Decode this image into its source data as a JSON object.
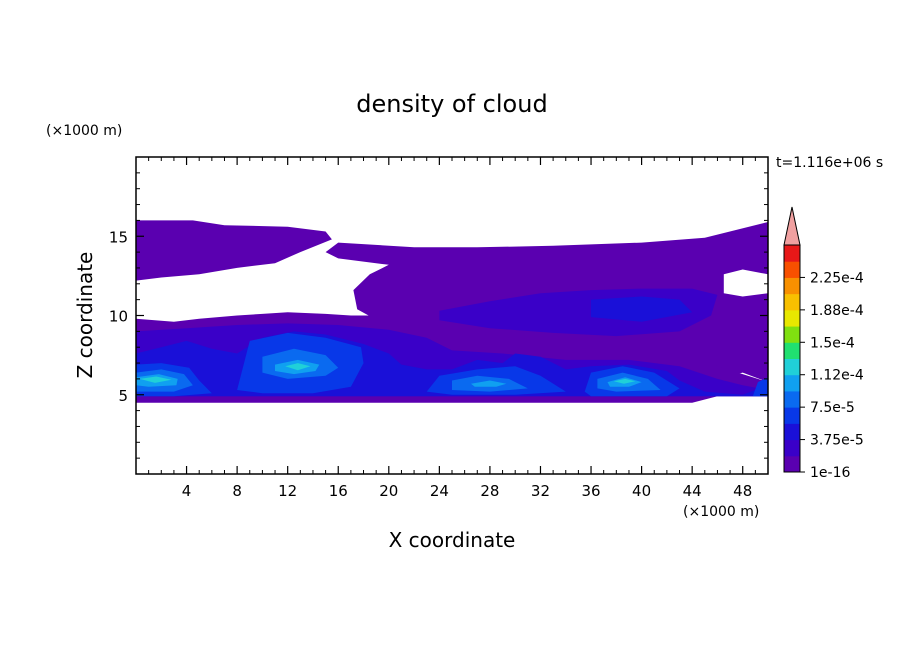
{
  "chart_data": {
    "type": "heatmap",
    "title": "density of cloud",
    "xlabel": "X coordinate",
    "ylabel": "Z coordinate",
    "x_unit": "(×1000 m)",
    "y_unit": "(×1000 m)",
    "time_label": "t=1.116e+06 s",
    "xlim": [
      0,
      50
    ],
    "ylim": [
      0,
      20
    ],
    "x_ticks": [
      4,
      8,
      12,
      16,
      20,
      24,
      28,
      32,
      36,
      40,
      44,
      48
    ],
    "y_ticks": [
      5,
      10,
      15
    ],
    "colorbar": {
      "levels": [
        1e-16,
        1.875e-05,
        3.75e-05,
        5.625e-05,
        7.5e-05,
        9.375e-05,
        0.0001125,
        0.00013125,
        0.00015,
        0.00016875,
        0.0001875,
        0.00020625,
        0.000225,
        0.00024375
      ],
      "colors": [
        "#5a00b0",
        "#3a00c8",
        "#1a10d8",
        "#0838e8",
        "#0a6af0",
        "#10a0f0",
        "#20d0d8",
        "#20e070",
        "#80e010",
        "#e8e800",
        "#f8c000",
        "#f89000",
        "#f85000",
        "#e81818"
      ],
      "extend_color": "#f0a0a0",
      "labels": [
        "1e-16",
        "3.75e-5",
        "7.5e-5",
        "1.12e-4",
        "1.5e-4",
        "1.88e-4",
        "2.25e-4"
      ],
      "label_levels": [
        1e-16,
        3.75e-05,
        7.5e-05,
        0.0001125,
        0.00015,
        0.0001875,
        0.000225
      ]
    },
    "regions": [
      {
        "level": 0,
        "points": [
          [
            0,
            16.0
          ],
          [
            4.5,
            16.0
          ],
          [
            7,
            15.7
          ],
          [
            12,
            15.6
          ],
          [
            15,
            15.3
          ],
          [
            15.5,
            14.8
          ],
          [
            13,
            14.0
          ],
          [
            11,
            13.3
          ],
          [
            8,
            13.0
          ],
          [
            5,
            12.6
          ],
          [
            2,
            12.4
          ],
          [
            0,
            12.2
          ]
        ]
      },
      {
        "level": 0,
        "points": [
          [
            16,
            14.6
          ],
          [
            22,
            14.3
          ],
          [
            27,
            14.3
          ],
          [
            33,
            14.4
          ],
          [
            40,
            14.6
          ],
          [
            45,
            14.9
          ],
          [
            50,
            15.9
          ],
          [
            50,
            12.6
          ],
          [
            48,
            12.9
          ],
          [
            46.5,
            12.6
          ],
          [
            46.5,
            11.4
          ],
          [
            48,
            11.2
          ],
          [
            50,
            11.4
          ],
          [
            50,
            5.8
          ],
          [
            48,
            6.4
          ],
          [
            46,
            6.0
          ],
          [
            45,
            6.9
          ],
          [
            43,
            6.6
          ],
          [
            42,
            7.1
          ],
          [
            39,
            7.6
          ],
          [
            36,
            7.6
          ],
          [
            33,
            7.7
          ],
          [
            28,
            7.6
          ],
          [
            24,
            7.6
          ],
          [
            22,
            8.5
          ],
          [
            20,
            9.3
          ],
          [
            17.5,
            10.4
          ],
          [
            17.2,
            11.6
          ],
          [
            18.5,
            12.6
          ],
          [
            20,
            13.2
          ],
          [
            18,
            13.4
          ],
          [
            16,
            13.6
          ],
          [
            15,
            14.0
          ]
        ]
      },
      {
        "level": 0,
        "points": [
          [
            0,
            9.8
          ],
          [
            3,
            9.6
          ],
          [
            5,
            9.8
          ],
          [
            8,
            10.0
          ],
          [
            10,
            10.1
          ],
          [
            12,
            10.2
          ],
          [
            15,
            10.1
          ],
          [
            17,
            10.0
          ],
          [
            19,
            10.0
          ],
          [
            21,
            9.8
          ],
          [
            23,
            9.5
          ],
          [
            25,
            9.2
          ],
          [
            29,
            8.6
          ],
          [
            33,
            8.4
          ],
          [
            36,
            8.2
          ],
          [
            39,
            7.9
          ],
          [
            42,
            7.9
          ],
          [
            44.5,
            7.6
          ],
          [
            46,
            6.8
          ],
          [
            48,
            6.3
          ],
          [
            50,
            5.8
          ],
          [
            50,
            4.9
          ],
          [
            46,
            4.9
          ],
          [
            44,
            4.5
          ],
          [
            40,
            4.5
          ],
          [
            36,
            4.5
          ],
          [
            32,
            4.5
          ],
          [
            28,
            4.5
          ],
          [
            24,
            4.5
          ],
          [
            20,
            4.5
          ],
          [
            16,
            4.5
          ],
          [
            12,
            4.5
          ],
          [
            8,
            4.5
          ],
          [
            4,
            4.5
          ],
          [
            0,
            4.5
          ]
        ]
      },
      {
        "level": 1,
        "points": [
          [
            24,
            10.3
          ],
          [
            28,
            10.9
          ],
          [
            32,
            11.4
          ],
          [
            36,
            11.6
          ],
          [
            40,
            11.7
          ],
          [
            44,
            11.7
          ],
          [
            46,
            11.3
          ],
          [
            45.5,
            10.0
          ],
          [
            43,
            9.0
          ],
          [
            38,
            8.7
          ],
          [
            33,
            8.9
          ],
          [
            28,
            9.2
          ],
          [
            24,
            9.7
          ]
        ]
      },
      {
        "level": 1,
        "points": [
          [
            0,
            9.0
          ],
          [
            4,
            9.2
          ],
          [
            8,
            9.4
          ],
          [
            12,
            9.5
          ],
          [
            16,
            9.4
          ],
          [
            20,
            9.1
          ],
          [
            23,
            8.6
          ],
          [
            25,
            7.8
          ],
          [
            29,
            7.6
          ],
          [
            34,
            7.2
          ],
          [
            39,
            7.2
          ],
          [
            43,
            6.8
          ],
          [
            46,
            6.0
          ],
          [
            48,
            5.6
          ],
          [
            50,
            5.3
          ],
          [
            50,
            4.9
          ],
          [
            0,
            4.9
          ]
        ]
      },
      {
        "level": 2,
        "points": [
          [
            36,
            11.0
          ],
          [
            40,
            11.2
          ],
          [
            43,
            11.0
          ],
          [
            44,
            10.2
          ],
          [
            40,
            9.6
          ],
          [
            36,
            9.9
          ]
        ]
      },
      {
        "level": 2,
        "points": [
          [
            0,
            7.6
          ],
          [
            2,
            8.0
          ],
          [
            4,
            8.4
          ],
          [
            6,
            7.9
          ],
          [
            8,
            7.6
          ],
          [
            10,
            8.6
          ],
          [
            12.5,
            9.0
          ],
          [
            15,
            8.8
          ],
          [
            18,
            8.2
          ],
          [
            20,
            7.6
          ],
          [
            21,
            6.9
          ],
          [
            23,
            6.6
          ],
          [
            25,
            6.6
          ],
          [
            27,
            7.2
          ],
          [
            29,
            7.0
          ],
          [
            30,
            7.6
          ],
          [
            32,
            7.4
          ],
          [
            34,
            6.6
          ],
          [
            36,
            6.8
          ],
          [
            39,
            6.9
          ],
          [
            42,
            6.5
          ],
          [
            43,
            5.9
          ],
          [
            45,
            5.2
          ],
          [
            48,
            5.0
          ],
          [
            50,
            5.6
          ],
          [
            50,
            4.9
          ],
          [
            0,
            4.9
          ]
        ]
      },
      {
        "level": 3,
        "points": [
          [
            9,
            8.4
          ],
          [
            12,
            8.9
          ],
          [
            15,
            8.6
          ],
          [
            17.8,
            8.0
          ],
          [
            18,
            7.0
          ],
          [
            17,
            5.5
          ],
          [
            14,
            5.1
          ],
          [
            10,
            5.1
          ],
          [
            8,
            5.3
          ]
        ]
      },
      {
        "level": 3,
        "points": [
          [
            0,
            6.9
          ],
          [
            2,
            7.0
          ],
          [
            4.2,
            6.7
          ],
          [
            5,
            5.9
          ],
          [
            6,
            5.1
          ],
          [
            3,
            4.9
          ],
          [
            0,
            4.9
          ]
        ]
      },
      {
        "level": 3,
        "points": [
          [
            24,
            6.2
          ],
          [
            27,
            6.6
          ],
          [
            30,
            6.8
          ],
          [
            32,
            6.2
          ],
          [
            34,
            5.2
          ],
          [
            30,
            5.0
          ],
          [
            25,
            5.0
          ],
          [
            23,
            5.2
          ]
        ]
      },
      {
        "level": 3,
        "points": [
          [
            36,
            6.4
          ],
          [
            38.5,
            6.8
          ],
          [
            41,
            6.4
          ],
          [
            43,
            5.4
          ],
          [
            42,
            4.9
          ],
          [
            36,
            4.9
          ],
          [
            35.5,
            5.2
          ]
        ]
      },
      {
        "level": 3,
        "points": [
          [
            49.2,
            5.8
          ],
          [
            50,
            6.1
          ],
          [
            50,
            4.9
          ],
          [
            48.8,
            4.9
          ]
        ]
      },
      {
        "level": 4,
        "points": [
          [
            10,
            7.4
          ],
          [
            12.5,
            7.9
          ],
          [
            15,
            7.5
          ],
          [
            16,
            6.7
          ],
          [
            15,
            6.2
          ],
          [
            12,
            6.0
          ],
          [
            10,
            6.4
          ]
        ]
      },
      {
        "level": 4,
        "points": [
          [
            0,
            6.4
          ],
          [
            2,
            6.6
          ],
          [
            3.8,
            6.3
          ],
          [
            4.5,
            5.6
          ],
          [
            3,
            5.2
          ],
          [
            0,
            5.2
          ]
        ]
      },
      {
        "level": 4,
        "points": [
          [
            25,
            5.9
          ],
          [
            27,
            6.2
          ],
          [
            29.5,
            6.0
          ],
          [
            31,
            5.4
          ],
          [
            28,
            5.2
          ],
          [
            25,
            5.3
          ]
        ]
      },
      {
        "level": 4,
        "points": [
          [
            36.5,
            6.0
          ],
          [
            38.5,
            6.4
          ],
          [
            40.5,
            6.0
          ],
          [
            41.5,
            5.3
          ],
          [
            38,
            5.2
          ],
          [
            36.5,
            5.4
          ]
        ]
      },
      {
        "level": 5,
        "points": [
          [
            11,
            6.9
          ],
          [
            12.8,
            7.2
          ],
          [
            14.5,
            6.9
          ],
          [
            14.2,
            6.5
          ],
          [
            12.5,
            6.3
          ],
          [
            11,
            6.5
          ]
        ]
      },
      {
        "level": 5,
        "points": [
          [
            0,
            6.1
          ],
          [
            1.8,
            6.3
          ],
          [
            3.3,
            6.0
          ],
          [
            3.2,
            5.6
          ],
          [
            1,
            5.5
          ],
          [
            0,
            5.6
          ]
        ]
      },
      {
        "level": 5,
        "points": [
          [
            26.5,
            5.7
          ],
          [
            28,
            5.9
          ],
          [
            29.3,
            5.7
          ],
          [
            28.5,
            5.5
          ],
          [
            26.8,
            5.5
          ]
        ]
      },
      {
        "level": 5,
        "points": [
          [
            37.3,
            5.8
          ],
          [
            38.7,
            6.1
          ],
          [
            40,
            5.8
          ],
          [
            39,
            5.5
          ],
          [
            37.5,
            5.5
          ]
        ]
      },
      {
        "level": 6,
        "points": [
          [
            11.8,
            6.8
          ],
          [
            12.8,
            7.0
          ],
          [
            13.8,
            6.8
          ],
          [
            12.8,
            6.55
          ]
        ]
      },
      {
        "level": 6,
        "points": [
          [
            0.3,
            6.0
          ],
          [
            1.6,
            6.15
          ],
          [
            2.8,
            5.95
          ],
          [
            1.5,
            5.75
          ]
        ]
      },
      {
        "level": 6,
        "points": [
          [
            37.8,
            5.85
          ],
          [
            38.7,
            6.0
          ],
          [
            39.5,
            5.85
          ],
          [
            38.6,
            5.7
          ]
        ]
      }
    ]
  }
}
